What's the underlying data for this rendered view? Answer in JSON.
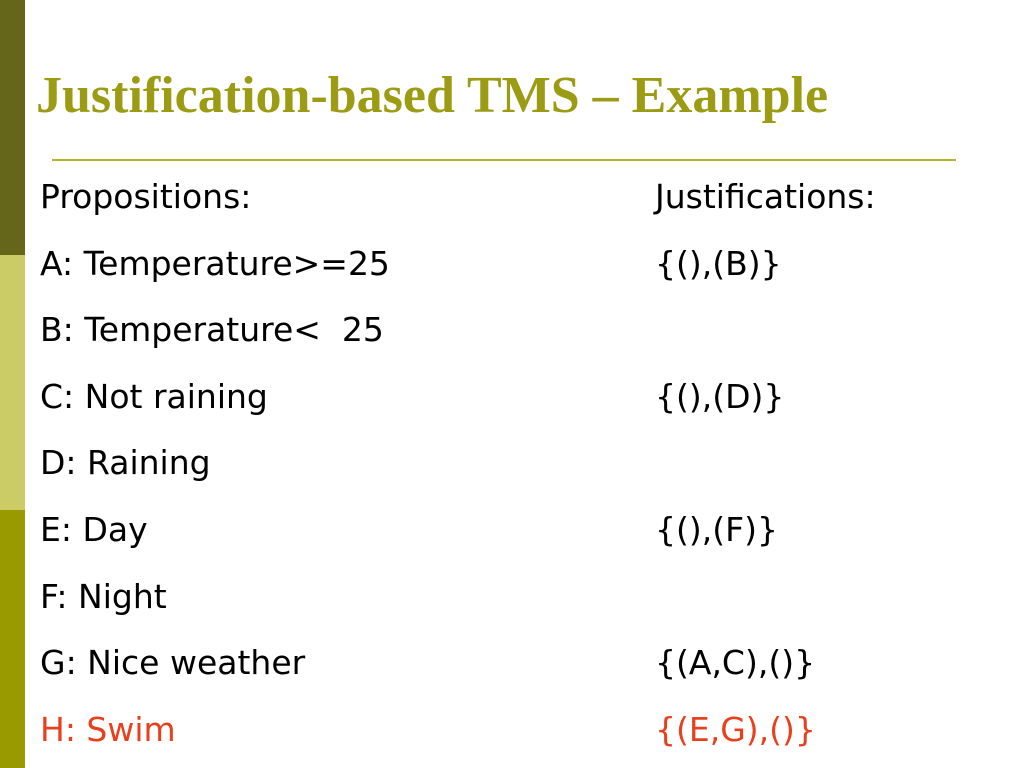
{
  "header": {
    "title": "Justification-based TMS – Example"
  },
  "table": {
    "columns": [
      "Propositions:",
      "Justifications:"
    ],
    "rows": [
      {
        "proposition": "A: Temperature>=25",
        "justification": "{(),(B)}"
      },
      {
        "proposition": "B: Temperature<  25"
      },
      {
        "proposition": "C: Not raining",
        "justification": "{(),(D)}"
      },
      {
        "proposition": "D: Raining"
      },
      {
        "proposition": "E: Day",
        "justification": "{(),(F)}"
      },
      {
        "proposition": "F: Night"
      },
      {
        "proposition": "G: Nice weather",
        "justification": "{(A,C),()}"
      },
      {
        "proposition": "H: Swim",
        "justification": "{(E,G),()}",
        "color": "#e8401c"
      }
    ]
  }
}
